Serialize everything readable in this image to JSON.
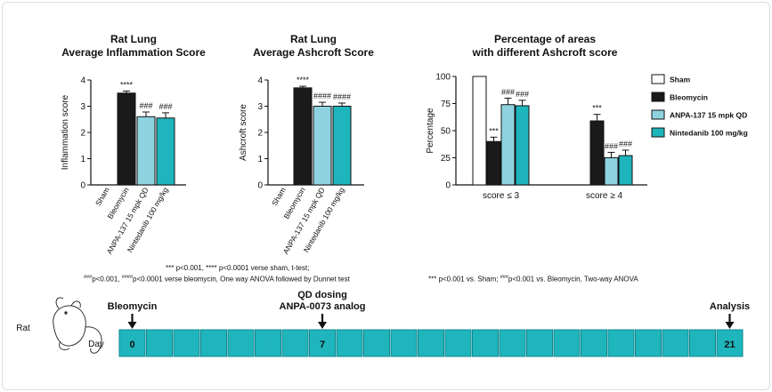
{
  "chart_data": [
    {
      "type": "bar",
      "title": [
        "Rat Lung",
        "Average Inflammation Score"
      ],
      "ylabel": "Inflammation score",
      "ylim": [
        0,
        4
      ],
      "yticks": [
        0,
        1,
        2,
        3,
        4
      ],
      "categories": [
        "Sham",
        "Bleomycin",
        "ANPA-137 15 mpk QD",
        "Nintedanib 100 mg/kg"
      ],
      "values": [
        0,
        3.5,
        2.6,
        2.55
      ],
      "errors": [
        0,
        0.08,
        0.18,
        0.2
      ],
      "annotations": [
        "",
        "****",
        "###",
        "###"
      ],
      "colors": [
        "#ffffff",
        "#1a1a1a",
        "#8ed3df",
        "#1fb5bc"
      ]
    },
    {
      "type": "bar",
      "title": [
        "Rat Lung",
        "Average Ashcroft Score"
      ],
      "ylabel": "Ashcroft score",
      "ylim": [
        0,
        4
      ],
      "yticks": [
        0,
        1,
        2,
        3,
        4
      ],
      "categories": [
        "Sham",
        "Bleomycin",
        "ANPA-137 15 mpk QD",
        "Nintedanib 100 mg/kg"
      ],
      "values": [
        0,
        3.7,
        3.0,
        3.0
      ],
      "errors": [
        0,
        0.06,
        0.15,
        0.12
      ],
      "annotations": [
        "",
        "****",
        "####",
        "####"
      ],
      "colors": [
        "#ffffff",
        "#1a1a1a",
        "#8ed3df",
        "#1fb5bc"
      ]
    },
    {
      "type": "bar",
      "title": [
        "Percentage of areas",
        "with different Ashcroft score"
      ],
      "ylabel": "Percentage",
      "ylim": [
        0,
        100
      ],
      "yticks": [
        0,
        25,
        50,
        75,
        100
      ],
      "categories": [
        "score ≤ 3",
        "score ≥ 4"
      ],
      "series": [
        {
          "name": "Sham",
          "color": "#ffffff",
          "values": [
            100,
            0
          ],
          "errors": [
            0,
            0
          ],
          "annotations": [
            "",
            ""
          ]
        },
        {
          "name": "Bleomycin",
          "color": "#1a1a1a",
          "values": [
            40,
            59
          ],
          "errors": [
            4,
            6
          ],
          "annotations": [
            "***",
            "***"
          ]
        },
        {
          "name": "ANPA-137 15 mpk QD",
          "color": "#8ed3df",
          "values": [
            74,
            25
          ],
          "errors": [
            6,
            5
          ],
          "annotations": [
            "###",
            "###"
          ]
        },
        {
          "name": "Nintedanib 100 mg/kg",
          "color": "#1fb5bc",
          "values": [
            73,
            27
          ],
          "errors": [
            5,
            5
          ],
          "annotations": [
            "###",
            "###"
          ]
        }
      ],
      "legend": "right"
    }
  ],
  "notes": {
    "left_line1": "*** p<0.001, **** p<0.0001 verse sham, t-test;",
    "left_line2_a_sup": "###",
    "left_line2_a": "p<0.001,",
    "left_line2_b_sup": "####",
    "left_line2_b": "p<0.0001 verse bleomycin, One way ANOVA followed by Dunnet test",
    "right_a": "*** p<0.001 vs. Sham;",
    "right_b_sup": "###",
    "right_b": "p<0.001 vs. Bleomycin, Two-way ANOVA"
  },
  "timeline": {
    "species": "Rat",
    "axis_label": "Day",
    "cell_count": 23,
    "events": [
      {
        "label": [
          "Bleomycin"
        ],
        "day_label": "0",
        "cell": 0
      },
      {
        "label": [
          "QD dosing",
          "ANPA-0073 analog"
        ],
        "day_label": "7",
        "cell": 7
      },
      {
        "label": [
          "Analysis"
        ],
        "day_label": "21",
        "cell": 22
      }
    ],
    "cell_color": "#1fb5bc"
  }
}
